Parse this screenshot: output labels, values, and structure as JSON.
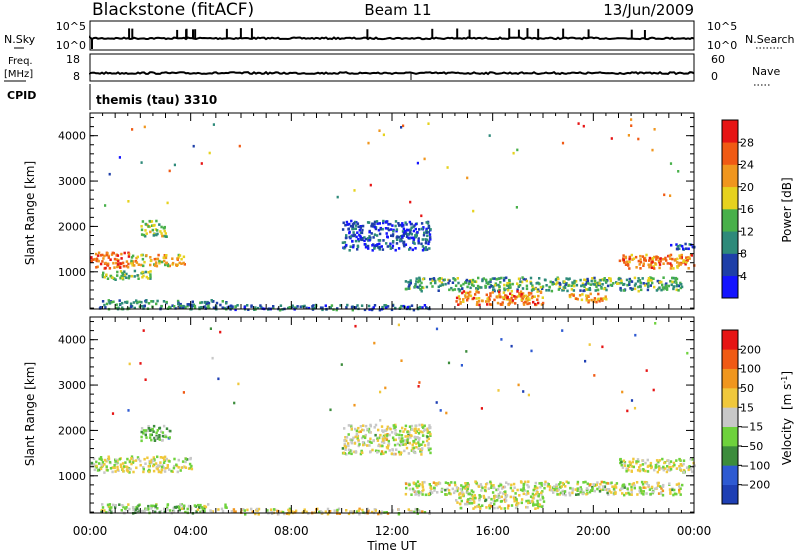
{
  "header": {
    "station": "Blackstone (fitACF)",
    "beam": "Beam 11",
    "date": "13/Jun/2009"
  },
  "strip_panels": {
    "nsky": {
      "left_label": "N.Sky",
      "left_ticks": [
        "10^5",
        "10^0"
      ],
      "right_label": "N.Search",
      "right_ticks": [
        "10^5",
        "10^0"
      ]
    },
    "freq": {
      "left_label_1": "Freq.",
      "left_label_2": "[MHz]",
      "left_ticks": [
        "18",
        "8"
      ],
      "right_label": "Nave",
      "right_ticks": [
        "60",
        "0"
      ]
    },
    "cpid": {
      "label": "CPID",
      "value": "themis (tau) 3310"
    }
  },
  "colorbars": {
    "power": {
      "label": "Power [dB]",
      "ticks": [
        "4",
        "8",
        "12",
        "16",
        "20",
        "24",
        "28"
      ],
      "colors": [
        "#1414ff",
        "#1e3fa8",
        "#2e8a7a",
        "#48b04a",
        "#e6d21e",
        "#f0961e",
        "#f05a14",
        "#e61414"
      ]
    },
    "velocity": {
      "label_main": "Velocity",
      "label_units": "[m s",
      "label_sup": "-1",
      "ticks": [
        "200",
        "100",
        "50",
        "15",
        "−15",
        "−50",
        "−100",
        "−200"
      ],
      "colors": [
        "#1e3fb4",
        "#2e5ad2",
        "#3c8c3c",
        "#6ed23c",
        "#c8c8c8",
        "#f0c83c",
        "#f0961e",
        "#f05a14",
        "#e61414"
      ]
    }
  },
  "chart_data": [
    {
      "type": "heatmap",
      "title": "Power",
      "xlabel": "Time UT",
      "ylabel": "Slant Range [km]",
      "x_ticks": [
        "00:00",
        "04:00",
        "08:00",
        "12:00",
        "16:00",
        "20:00",
        "00:00"
      ],
      "y_ticks": [
        "1000",
        "2000",
        "3000",
        "4000"
      ],
      "xlim_hours": [
        0,
        24
      ],
      "ylim": [
        180,
        4500
      ],
      "colorbar_range": [
        0,
        32
      ],
      "regions": [
        {
          "t": [
            0.0,
            1.6
          ],
          "r": [
            1100,
            1450
          ],
          "v": 26
        },
        {
          "t": [
            1.6,
            3.8
          ],
          "r": [
            1150,
            1400
          ],
          "v": 20
        },
        {
          "t": [
            0.4,
            2.4
          ],
          "r": [
            850,
            1050
          ],
          "v": 14
        },
        {
          "t": [
            2.0,
            3.0
          ],
          "r": [
            1800,
            2150
          ],
          "v": 16
        },
        {
          "t": [
            0.3,
            5.5
          ],
          "r": [
            200,
            400
          ],
          "v": 10
        },
        {
          "t": [
            5.5,
            13.5
          ],
          "r": [
            180,
            300
          ],
          "v": 8
        },
        {
          "t": [
            10.0,
            13.5
          ],
          "r": [
            1500,
            2150
          ],
          "v": 6
        },
        {
          "t": [
            12.5,
            23.5
          ],
          "r": [
            600,
            900
          ],
          "v": 12
        },
        {
          "t": [
            14.5,
            18.0
          ],
          "r": [
            300,
            600
          ],
          "v": 24
        },
        {
          "t": [
            19.0,
            20.5
          ],
          "r": [
            350,
            550
          ],
          "v": 22
        },
        {
          "t": [
            21.0,
            24.0
          ],
          "r": [
            1100,
            1400
          ],
          "v": 24
        },
        {
          "t": [
            23.0,
            24.0
          ],
          "r": [
            1500,
            1650
          ],
          "v": 6
        }
      ]
    },
    {
      "type": "heatmap",
      "title": "Velocity",
      "xlabel": "Time UT",
      "ylabel": "Slant Range [km]",
      "x_ticks": [
        "00:00",
        "04:00",
        "08:00",
        "12:00",
        "16:00",
        "20:00",
        "00:00"
      ],
      "y_ticks": [
        "1000",
        "2000",
        "3000",
        "4000"
      ],
      "xlim_hours": [
        0,
        24
      ],
      "ylim": [
        180,
        4500
      ],
      "colorbar_range": [
        -200,
        200
      ],
      "regions": [
        {
          "t": [
            0.0,
            4.0
          ],
          "r": [
            1100,
            1450
          ],
          "v": 0
        },
        {
          "t": [
            2.0,
            3.2
          ],
          "r": [
            1800,
            2150
          ],
          "v": -50
        },
        {
          "t": [
            0.3,
            5.5
          ],
          "r": [
            200,
            400
          ],
          "v": -30
        },
        {
          "t": [
            5.5,
            13.5
          ],
          "r": [
            180,
            300
          ],
          "v": 30
        },
        {
          "t": [
            10.0,
            13.5
          ],
          "r": [
            1500,
            2150
          ],
          "v": 0
        },
        {
          "t": [
            12.5,
            23.5
          ],
          "r": [
            600,
            900
          ],
          "v": 0
        },
        {
          "t": [
            14.5,
            18.0
          ],
          "r": [
            300,
            600
          ],
          "v": 0
        },
        {
          "t": [
            21.0,
            24.0
          ],
          "r": [
            1100,
            1400
          ],
          "v": 0
        }
      ]
    }
  ]
}
